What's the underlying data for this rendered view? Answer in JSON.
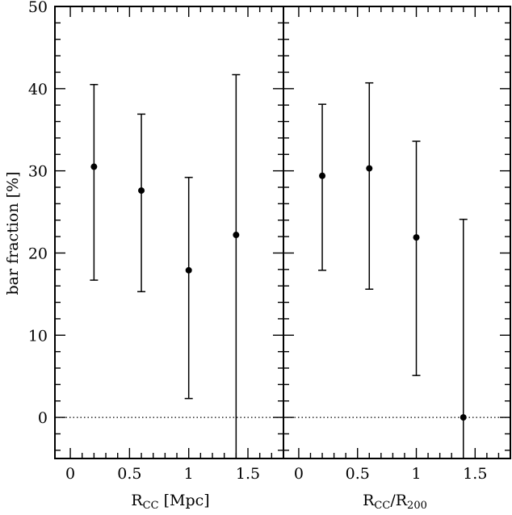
{
  "chart_data": [
    {
      "type": "scatter",
      "error_bars": true,
      "xlabel": "R_CC [Mpc]",
      "xlabel_main": "R",
      "xlabel_sub": "CC",
      "xlabel_rest": " [Mpc]",
      "ylabel": "bar fraction [%]",
      "xlim": [
        -0.13,
        1.8
      ],
      "ylim": [
        -5,
        50
      ],
      "xticks": [
        0,
        0.5,
        1,
        1.5
      ],
      "xtick_labels": [
        "0",
        "0.5",
        "1",
        "1.5"
      ],
      "yticks": [
        0,
        10,
        20,
        30,
        40,
        50
      ],
      "ytick_labels": [
        "0",
        "10",
        "20",
        "30",
        "40",
        "50"
      ],
      "reference_line": {
        "y": 0,
        "style": "dotted"
      },
      "grid": false,
      "points": [
        {
          "x": 0.2,
          "y": 30.5,
          "y_low": 16.7,
          "y_high": 40.5
        },
        {
          "x": 0.6,
          "y": 27.6,
          "y_low": 15.3,
          "y_high": 36.9
        },
        {
          "x": 1.0,
          "y": 17.9,
          "y_low": 2.3,
          "y_high": 29.2
        },
        {
          "x": 1.4,
          "y": 22.2,
          "y_low": -5,
          "y_high": 41.7
        }
      ]
    },
    {
      "type": "scatter",
      "error_bars": true,
      "xlabel": "R_CC/R_200",
      "xlabel_main": "R",
      "xlabel_sub": "CC",
      "xlabel_mid": "/R",
      "xlabel_sub2": "200",
      "ylabel": "",
      "xlim": [
        -0.13,
        1.8
      ],
      "ylim": [
        -5,
        50
      ],
      "xticks": [
        0,
        0.5,
        1,
        1.5
      ],
      "xtick_labels": [
        "0",
        "0.5",
        "1",
        "1.5"
      ],
      "yticks": [
        0,
        10,
        20,
        30,
        40,
        50
      ],
      "reference_line": {
        "y": 0,
        "style": "dotted"
      },
      "grid": false,
      "points": [
        {
          "x": 0.2,
          "y": 29.4,
          "y_low": 17.9,
          "y_high": 38.1
        },
        {
          "x": 0.6,
          "y": 30.3,
          "y_low": 15.6,
          "y_high": 40.7
        },
        {
          "x": 1.0,
          "y": 21.9,
          "y_low": 5.1,
          "y_high": 33.6
        },
        {
          "x": 1.4,
          "y": 0.0,
          "y_low": -5,
          "y_high": 24.1
        }
      ]
    }
  ]
}
